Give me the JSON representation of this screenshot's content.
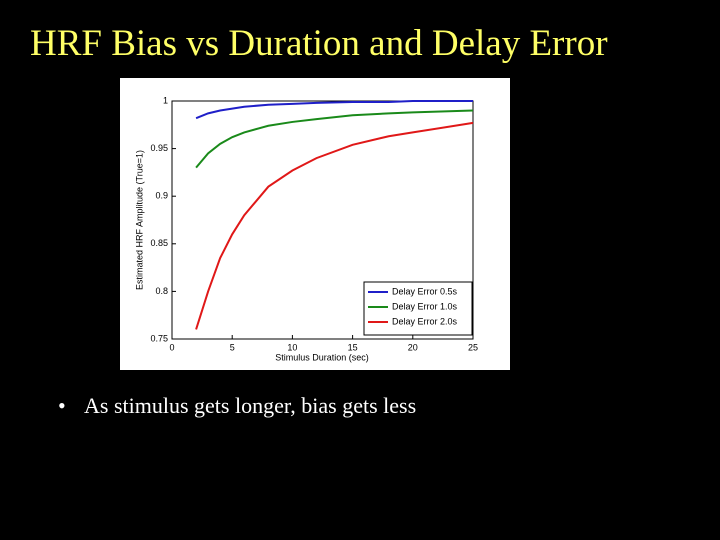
{
  "slide": {
    "title": "HRF Bias vs Duration and Delay Error",
    "bullets": [
      "As stimulus gets longer, bias gets less"
    ]
  },
  "chart_data": {
    "type": "line",
    "x_label": "Stimulus Duration (sec)",
    "y_label": "Estimated HRF Amplitude (True=1)",
    "x": [
      2,
      3,
      4,
      5,
      6,
      8,
      10,
      12,
      15,
      18,
      20,
      25
    ],
    "series": [
      {
        "name": "Delay Error 0.5s",
        "color": "#1f1fc8",
        "values": [
          0.982,
          0.987,
          0.99,
          0.992,
          0.994,
          0.996,
          0.997,
          0.998,
          0.999,
          0.999,
          1.0,
          1.0
        ]
      },
      {
        "name": "Delay Error 1.0s",
        "color": "#1a8a1a",
        "values": [
          0.93,
          0.945,
          0.955,
          0.962,
          0.967,
          0.974,
          0.978,
          0.981,
          0.985,
          0.987,
          0.988,
          0.99
        ]
      },
      {
        "name": "Delay Error 2.0s",
        "color": "#e01818",
        "values": [
          0.76,
          0.8,
          0.835,
          0.86,
          0.88,
          0.91,
          0.927,
          0.94,
          0.954,
          0.963,
          0.967,
          0.977
        ]
      }
    ],
    "xlim": [
      0,
      25
    ],
    "xticks": [
      0,
      5,
      10,
      15,
      20,
      25
    ],
    "ylim": [
      0.75,
      1
    ],
    "yticks": [
      0.75,
      0.8,
      0.85,
      0.9,
      0.95,
      1
    ],
    "legend": "lower right",
    "grid": false
  }
}
